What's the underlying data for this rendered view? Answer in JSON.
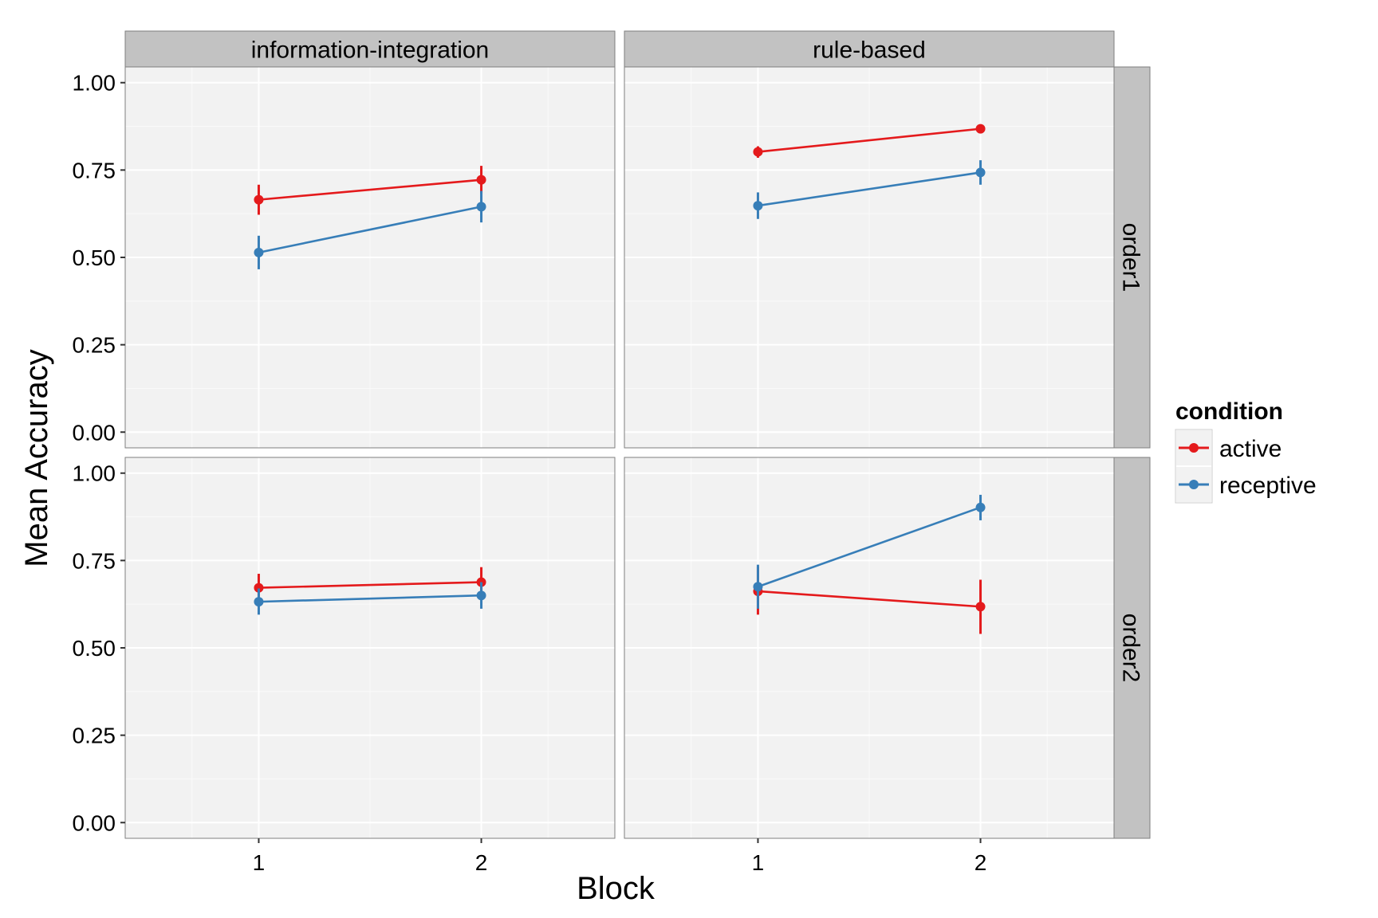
{
  "chart_data": {
    "type": "line",
    "xlabel": "Block",
    "ylabel": "Mean Accuracy",
    "x": [
      1,
      2
    ],
    "x_ticks": [
      "1",
      "2"
    ],
    "y_ticks": [
      "0.00",
      "0.25",
      "0.50",
      "0.75",
      "1.00"
    ],
    "ylim": [
      -0.045,
      1.045
    ],
    "xlim": [
      0.4,
      2.6
    ],
    "grid": true,
    "col_facets": [
      "information-integration",
      "rule-based"
    ],
    "row_facets": [
      "order1",
      "order2"
    ],
    "legend": {
      "title": "condition",
      "position": "right",
      "entries": [
        "active",
        "receptive"
      ]
    },
    "colors": {
      "active": "#e41a1c",
      "receptive": "#377eb8"
    },
    "panels": [
      {
        "col": "information-integration",
        "row": "order1",
        "series": [
          {
            "name": "active",
            "values": [
              0.665,
              0.722
            ],
            "lower": [
              0.622,
              0.683
            ],
            "upper": [
              0.708,
              0.762
            ]
          },
          {
            "name": "receptive",
            "values": [
              0.514,
              0.645
            ],
            "lower": [
              0.466,
              0.6
            ],
            "upper": [
              0.562,
              0.69
            ]
          }
        ]
      },
      {
        "col": "rule-based",
        "row": "order1",
        "series": [
          {
            "name": "active",
            "values": [
              0.802,
              0.868
            ],
            "lower": [
              0.785,
              0.86
            ],
            "upper": [
              0.818,
              0.876
            ]
          },
          {
            "name": "receptive",
            "values": [
              0.648,
              0.743
            ],
            "lower": [
              0.61,
              0.708
            ],
            "upper": [
              0.686,
              0.778
            ]
          }
        ]
      },
      {
        "col": "information-integration",
        "row": "order2",
        "series": [
          {
            "name": "active",
            "values": [
              0.672,
              0.688
            ],
            "lower": [
              0.632,
              0.645
            ],
            "upper": [
              0.712,
              0.731
            ]
          },
          {
            "name": "receptive",
            "values": [
              0.632,
              0.65
            ],
            "lower": [
              0.595,
              0.612
            ],
            "upper": [
              0.67,
              0.688
            ]
          }
        ]
      },
      {
        "col": "rule-based",
        "row": "order2",
        "series": [
          {
            "name": "active",
            "values": [
              0.662,
              0.618
            ],
            "lower": [
              0.595,
              0.54
            ],
            "upper": [
              0.732,
              0.695
            ]
          },
          {
            "name": "receptive",
            "values": [
              0.675,
              0.902
            ],
            "lower": [
              0.612,
              0.865
            ],
            "upper": [
              0.738,
              0.938
            ]
          }
        ]
      }
    ]
  }
}
